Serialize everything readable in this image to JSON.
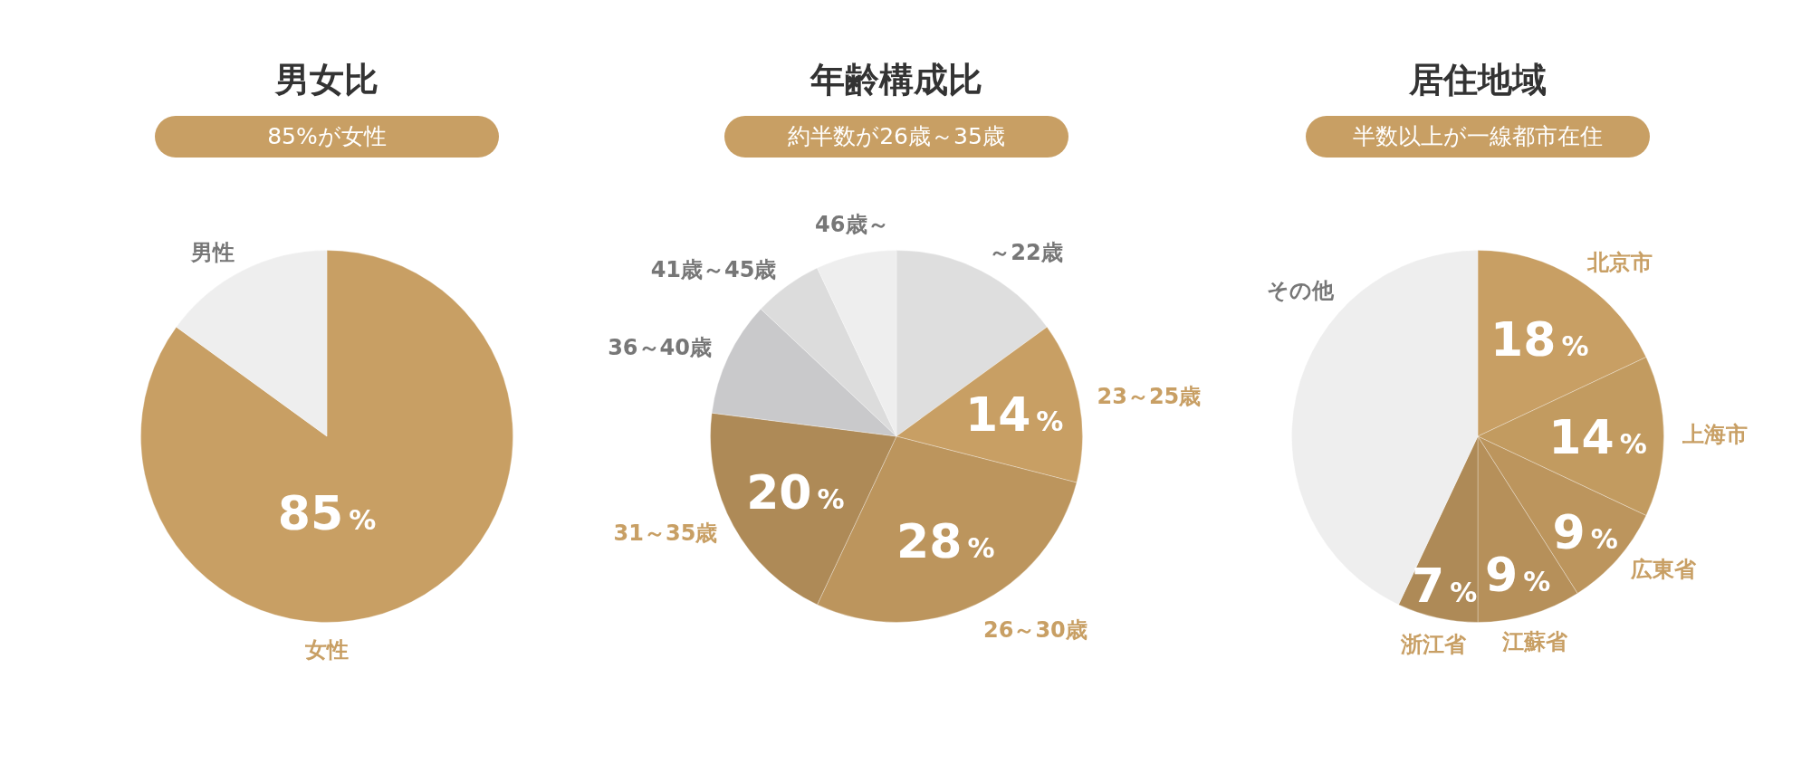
{
  "chart_data": [
    {
      "type": "pie",
      "title": "男女比",
      "subtitle": "85%が女性",
      "categories": [
        "女性",
        "男性"
      ],
      "values": [
        85,
        15
      ],
      "colors": [
        "#c89f64",
        "#eeeeee"
      ],
      "value_labels": [
        "85%",
        null
      ]
    },
    {
      "type": "pie",
      "title": "年齢構成比",
      "subtitle": "約半数が26歳～35歳",
      "categories": [
        "～22歳",
        "23～25歳",
        "26～30歳",
        "31～35歳",
        "36～40歳",
        "41歳～45歳",
        "46歳～"
      ],
      "values": [
        15,
        14,
        28,
        20,
        10,
        6,
        7
      ],
      "colors": [
        "#dedede",
        "#c89f64",
        "#bc955d",
        "#ae8a57",
        "#c9c9cb",
        "#dcdcdc",
        "#eeeeee"
      ],
      "value_labels": [
        null,
        "14%",
        "28%",
        "20%",
        null,
        null,
        null
      ]
    },
    {
      "type": "pie",
      "title": "居住地域",
      "subtitle": "半数以上が一線都市在住",
      "categories": [
        "北京市",
        "上海市",
        "広東省",
        "江蘇省",
        "浙江省",
        "その他"
      ],
      "values": [
        18,
        14,
        9,
        9,
        7,
        43
      ],
      "colors": [
        "#c89f64",
        "#c29b60",
        "#bc955d",
        "#b6905a",
        "#ae8a57",
        "#eeeeee"
      ],
      "value_labels": [
        "18%",
        "14%",
        "9%",
        "9%",
        "7%",
        null
      ]
    }
  ]
}
